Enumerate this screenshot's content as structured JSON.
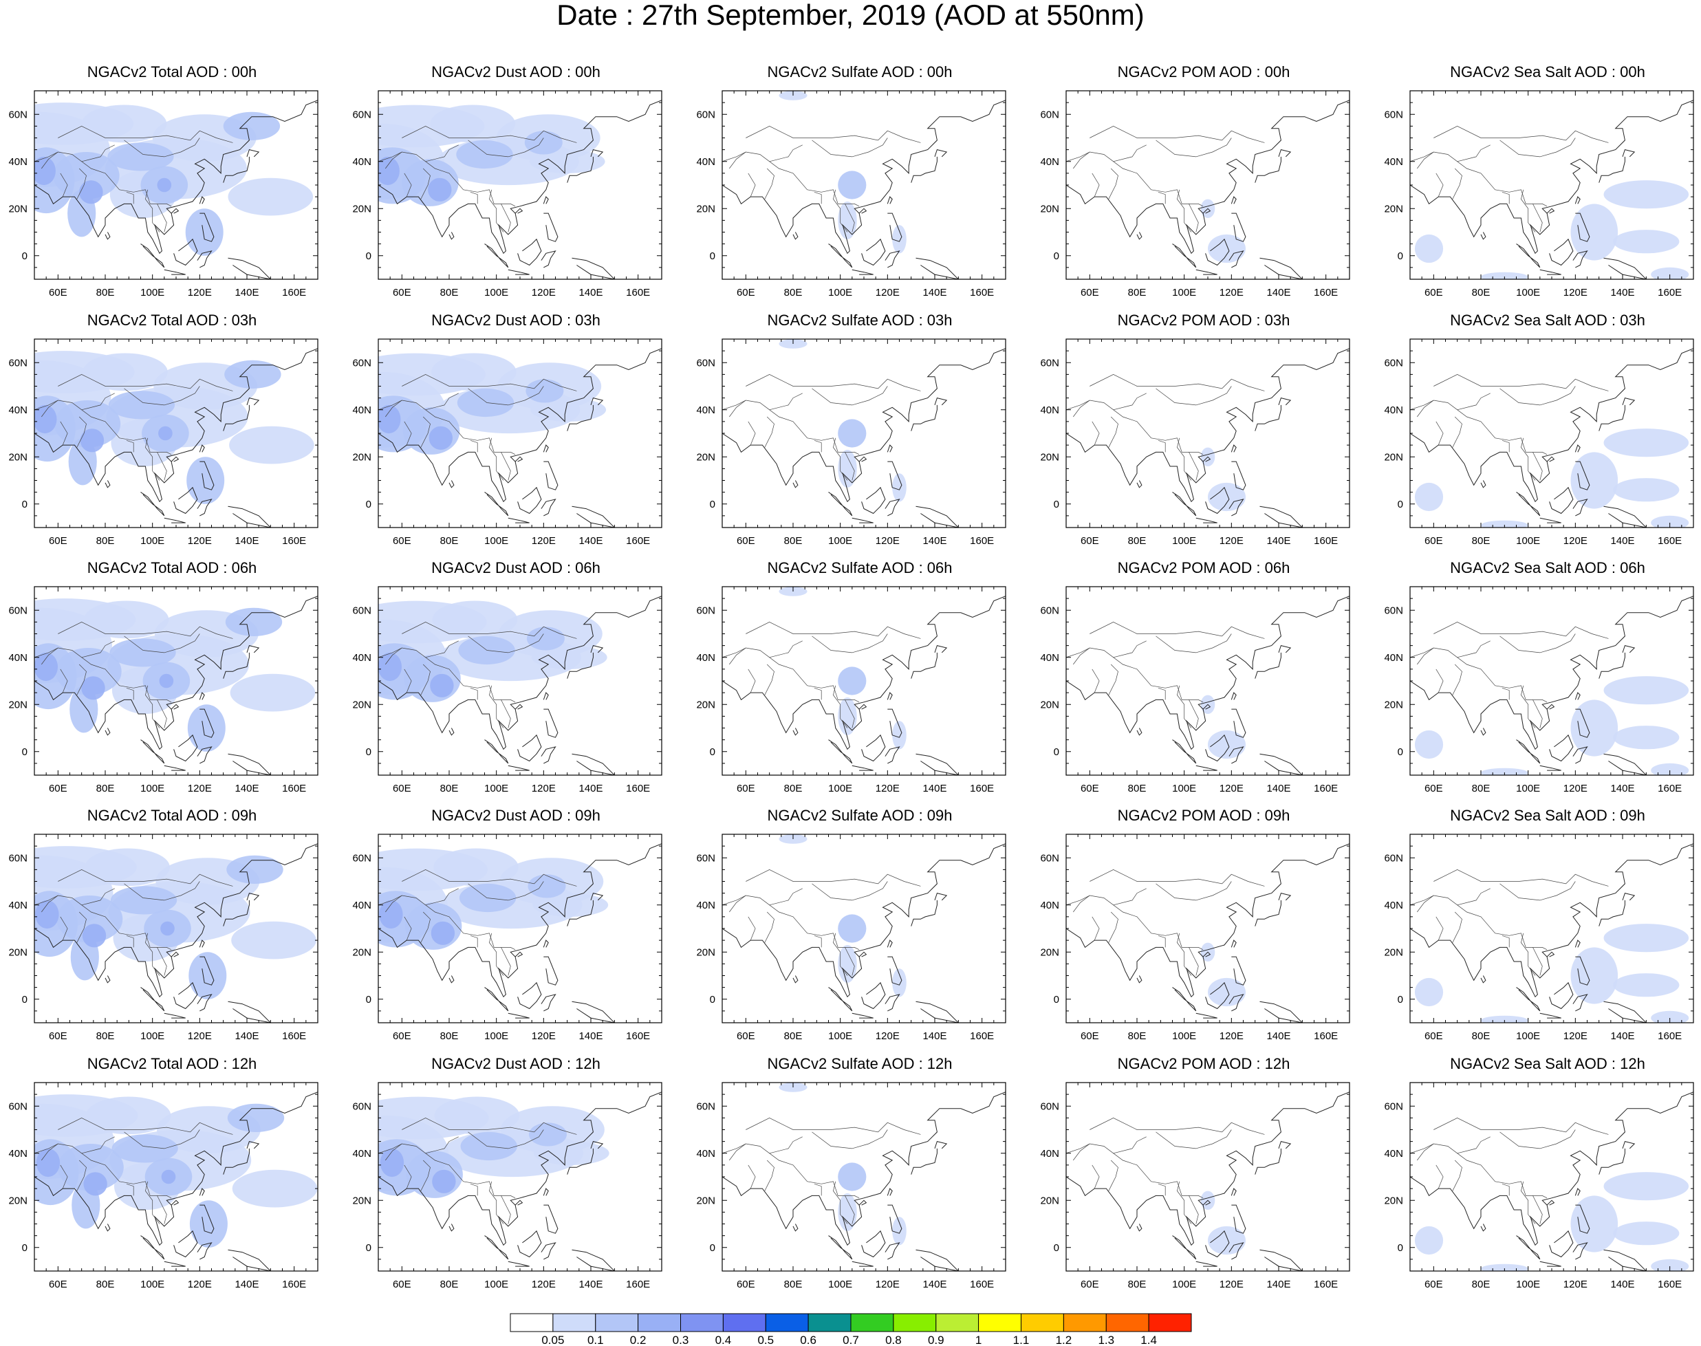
{
  "title": "Date : 27th September, 2019 (AOD at 550nm)",
  "map_axes": {
    "lon_ticks": [
      "60E",
      "80E",
      "100E",
      "120E",
      "140E",
      "160E"
    ],
    "lon_values": [
      60,
      80,
      100,
      120,
      140,
      160
    ],
    "lat_ticks": [
      "60N",
      "40N",
      "20N",
      "0"
    ],
    "lat_values": [
      60,
      40,
      20,
      0
    ],
    "lon_range": [
      50,
      170
    ],
    "lat_range": [
      -10,
      70
    ]
  },
  "panels": [
    [
      {
        "title": "NGACv2 Total AOD : 00h",
        "species": "total"
      },
      {
        "title": "NGACv2 Dust AOD : 00h",
        "species": "dust"
      },
      {
        "title": "NGACv2 Sulfate AOD : 00h",
        "species": "sulfate"
      },
      {
        "title": "NGACv2 POM AOD : 00h",
        "species": "pom"
      },
      {
        "title": "NGACv2 Sea Salt AOD : 00h",
        "species": "seasalt"
      }
    ],
    [
      {
        "title": "NGACv2 Total AOD : 03h",
        "species": "total"
      },
      {
        "title": "NGACv2 Dust AOD : 03h",
        "species": "dust"
      },
      {
        "title": "NGACv2 Sulfate AOD : 03h",
        "species": "sulfate"
      },
      {
        "title": "NGACv2 POM AOD : 03h",
        "species": "pom"
      },
      {
        "title": "NGACv2 Sea Salt AOD : 03h",
        "species": "seasalt"
      }
    ],
    [
      {
        "title": "NGACv2 Total AOD : 06h",
        "species": "total"
      },
      {
        "title": "NGACv2 Dust AOD : 06h",
        "species": "dust"
      },
      {
        "title": "NGACv2 Sulfate AOD : 06h",
        "species": "sulfate"
      },
      {
        "title": "NGACv2 POM AOD : 06h",
        "species": "pom"
      },
      {
        "title": "NGACv2 Sea Salt AOD : 06h",
        "species": "seasalt"
      }
    ],
    [
      {
        "title": "NGACv2 Total AOD : 09h",
        "species": "total"
      },
      {
        "title": "NGACv2 Dust AOD : 09h",
        "species": "dust"
      },
      {
        "title": "NGACv2 Sulfate AOD : 09h",
        "species": "sulfate"
      },
      {
        "title": "NGACv2 POM AOD : 09h",
        "species": "pom"
      },
      {
        "title": "NGACv2 Sea Salt  AOD : 09h",
        "species": "seasalt"
      }
    ],
    [
      {
        "title": "NGACv2 Total AOD  : 12h",
        "species": "total"
      },
      {
        "title": "NGACv2 Dust AOD : 12h",
        "species": "dust"
      },
      {
        "title": "NGACv2 Sulfate AOD : 12h",
        "species": "sulfate"
      },
      {
        "title": "NGACv2 POM  AOD : 12h",
        "species": "pom"
      },
      {
        "title": "NGACv2 Sea Salt  AOD : 12h",
        "species": "seasalt"
      }
    ]
  ],
  "colorbar": {
    "labels": [
      "0.05",
      "0.1",
      "0.2",
      "0.3",
      "0.4",
      "0.5",
      "0.6",
      "0.7",
      "0.8",
      "0.9",
      "1",
      "1.1",
      "1.2",
      "1.3",
      "1.4"
    ],
    "colors": [
      "#ffffff",
      "#cfdcfa",
      "#b3c6f7",
      "#99b0f5",
      "#7f93f2",
      "#5f6ff0",
      "#0a5fe6",
      "#0a9090",
      "#33cc22",
      "#88ee00",
      "#bbee33",
      "#ffff00",
      "#ffcc00",
      "#ff9900",
      "#ff6600",
      "#ff2200"
    ]
  }
}
